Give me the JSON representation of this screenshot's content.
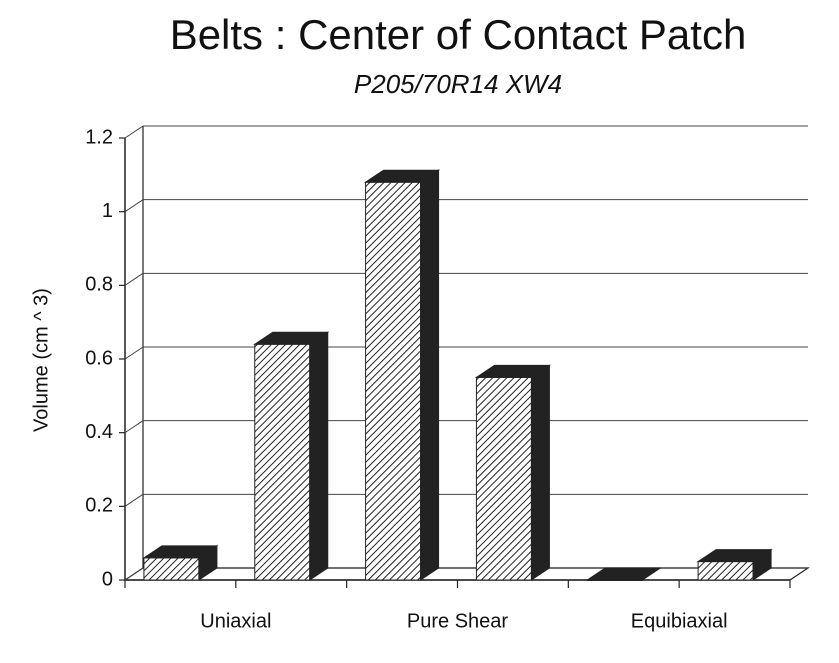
{
  "chart_data": {
    "type": "bar3d",
    "title": "Belts : Center of Contact Patch",
    "subtitle": "P205/70R14 XW4",
    "y_label": "Volume (cm ^ 3)",
    "categories": [
      "Uniaxial",
      "Pure Shear",
      "Equibiaxial"
    ],
    "series": [
      {
        "color": "#222222",
        "values": [
          0.06,
          1.08,
          0
        ]
      },
      {
        "color": "#222222",
        "values": [
          0.64,
          0.55,
          0.05
        ]
      }
    ],
    "ylim": [
      0,
      1.2
    ],
    "yticks": [
      0,
      0.2,
      0.4,
      0.6,
      0.8,
      1,
      1.2
    ],
    "grid": true
  }
}
